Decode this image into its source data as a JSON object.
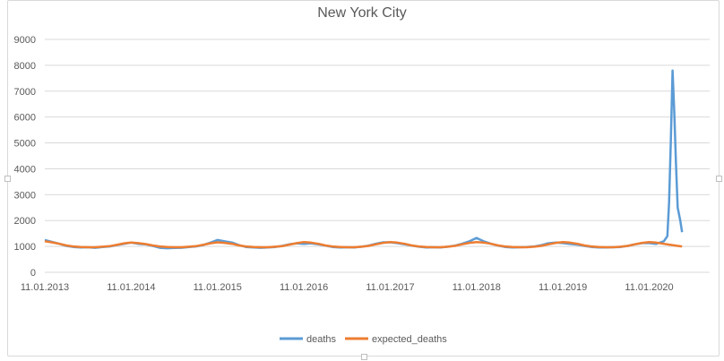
{
  "chart_data": {
    "type": "line",
    "title": "New York City",
    "xlabel": "",
    "ylabel": "",
    "ylim": [
      0,
      9000
    ],
    "yticks": [
      0,
      1000,
      2000,
      3000,
      4000,
      5000,
      6000,
      7000,
      8000,
      9000
    ],
    "x_tick_labels": [
      "11.01.2013",
      "11.01.2014",
      "11.01.2015",
      "11.01.2016",
      "11.01.2017",
      "11.01.2018",
      "11.01.2019",
      "11.01.2020"
    ],
    "x_range_years": [
      2013,
      2020.7
    ],
    "grid": true,
    "legend": "bottom",
    "series": [
      {
        "name": "deaths",
        "color": "#5b9bd5",
        "points": [
          [
            2013.0,
            1250
          ],
          [
            2013.08,
            1180
          ],
          [
            2013.17,
            1100
          ],
          [
            2013.25,
            1020
          ],
          [
            2013.33,
            980
          ],
          [
            2013.42,
            960
          ],
          [
            2013.5,
            970
          ],
          [
            2013.58,
            950
          ],
          [
            2013.67,
            980
          ],
          [
            2013.75,
            1000
          ],
          [
            2013.83,
            1050
          ],
          [
            2013.92,
            1100
          ],
          [
            2014.0,
            1150
          ],
          [
            2014.08,
            1100
          ],
          [
            2014.17,
            1080
          ],
          [
            2014.25,
            1020
          ],
          [
            2014.33,
            950
          ],
          [
            2014.42,
            930
          ],
          [
            2014.5,
            940
          ],
          [
            2014.58,
            950
          ],
          [
            2014.67,
            980
          ],
          [
            2014.75,
            1000
          ],
          [
            2014.83,
            1050
          ],
          [
            2014.92,
            1150
          ],
          [
            2015.0,
            1250
          ],
          [
            2015.08,
            1200
          ],
          [
            2015.17,
            1150
          ],
          [
            2015.25,
            1050
          ],
          [
            2015.33,
            980
          ],
          [
            2015.42,
            960
          ],
          [
            2015.5,
            950
          ],
          [
            2015.58,
            960
          ],
          [
            2015.67,
            980
          ],
          [
            2015.75,
            1020
          ],
          [
            2015.83,
            1080
          ],
          [
            2015.92,
            1120
          ],
          [
            2016.0,
            1100
          ],
          [
            2016.08,
            1120
          ],
          [
            2016.17,
            1080
          ],
          [
            2016.25,
            1030
          ],
          [
            2016.33,
            980
          ],
          [
            2016.42,
            960
          ],
          [
            2016.5,
            970
          ],
          [
            2016.58,
            960
          ],
          [
            2016.67,
            990
          ],
          [
            2016.75,
            1030
          ],
          [
            2016.83,
            1100
          ],
          [
            2016.92,
            1160
          ],
          [
            2017.0,
            1160
          ],
          [
            2017.08,
            1130
          ],
          [
            2017.17,
            1080
          ],
          [
            2017.25,
            1030
          ],
          [
            2017.33,
            990
          ],
          [
            2017.42,
            960
          ],
          [
            2017.5,
            970
          ],
          [
            2017.58,
            960
          ],
          [
            2017.67,
            990
          ],
          [
            2017.75,
            1030
          ],
          [
            2017.83,
            1100
          ],
          [
            2017.92,
            1200
          ],
          [
            2018.0,
            1330
          ],
          [
            2018.08,
            1200
          ],
          [
            2018.17,
            1100
          ],
          [
            2018.25,
            1030
          ],
          [
            2018.33,
            980
          ],
          [
            2018.42,
            960
          ],
          [
            2018.5,
            970
          ],
          [
            2018.58,
            980
          ],
          [
            2018.67,
            1000
          ],
          [
            2018.75,
            1050
          ],
          [
            2018.83,
            1120
          ],
          [
            2018.92,
            1150
          ],
          [
            2019.0,
            1130
          ],
          [
            2019.08,
            1100
          ],
          [
            2019.17,
            1070
          ],
          [
            2019.25,
            1020
          ],
          [
            2019.33,
            980
          ],
          [
            2019.42,
            960
          ],
          [
            2019.5,
            960
          ],
          [
            2019.58,
            970
          ],
          [
            2019.67,
            980
          ],
          [
            2019.75,
            1020
          ],
          [
            2019.83,
            1080
          ],
          [
            2019.92,
            1130
          ],
          [
            2020.0,
            1130
          ],
          [
            2020.08,
            1100
          ],
          [
            2020.17,
            1200
          ],
          [
            2020.21,
            1400
          ],
          [
            2020.23,
            2700
          ],
          [
            2020.25,
            5000
          ],
          [
            2020.27,
            7800
          ],
          [
            2020.29,
            6200
          ],
          [
            2020.31,
            4200
          ],
          [
            2020.33,
            2500
          ],
          [
            2020.36,
            2000
          ],
          [
            2020.38,
            1550
          ]
        ]
      },
      {
        "name": "expected_deaths",
        "color": "#ed7d31",
        "points": [
          [
            2013.0,
            1200
          ],
          [
            2013.08,
            1160
          ],
          [
            2013.17,
            1100
          ],
          [
            2013.25,
            1040
          ],
          [
            2013.33,
            1000
          ],
          [
            2013.42,
            980
          ],
          [
            2013.5,
            970
          ],
          [
            2013.58,
            970
          ],
          [
            2013.67,
            990
          ],
          [
            2013.75,
            1010
          ],
          [
            2013.83,
            1060
          ],
          [
            2013.92,
            1120
          ],
          [
            2014.0,
            1150
          ],
          [
            2014.08,
            1130
          ],
          [
            2014.17,
            1090
          ],
          [
            2014.25,
            1040
          ],
          [
            2014.33,
            1000
          ],
          [
            2014.42,
            980
          ],
          [
            2014.5,
            970
          ],
          [
            2014.58,
            970
          ],
          [
            2014.67,
            990
          ],
          [
            2014.75,
            1010
          ],
          [
            2014.83,
            1060
          ],
          [
            2014.92,
            1120
          ],
          [
            2015.0,
            1160
          ],
          [
            2015.08,
            1140
          ],
          [
            2015.17,
            1100
          ],
          [
            2015.25,
            1040
          ],
          [
            2015.33,
            1000
          ],
          [
            2015.42,
            980
          ],
          [
            2015.5,
            970
          ],
          [
            2015.58,
            970
          ],
          [
            2015.67,
            990
          ],
          [
            2015.75,
            1010
          ],
          [
            2015.83,
            1070
          ],
          [
            2015.92,
            1130
          ],
          [
            2016.0,
            1170
          ],
          [
            2016.08,
            1150
          ],
          [
            2016.17,
            1100
          ],
          [
            2016.25,
            1040
          ],
          [
            2016.33,
            1000
          ],
          [
            2016.42,
            980
          ],
          [
            2016.5,
            970
          ],
          [
            2016.58,
            970
          ],
          [
            2016.67,
            990
          ],
          [
            2016.75,
            1020
          ],
          [
            2016.83,
            1080
          ],
          [
            2016.92,
            1140
          ],
          [
            2017.0,
            1170
          ],
          [
            2017.08,
            1150
          ],
          [
            2017.17,
            1100
          ],
          [
            2017.25,
            1040
          ],
          [
            2017.33,
            1000
          ],
          [
            2017.42,
            980
          ],
          [
            2017.5,
            970
          ],
          [
            2017.58,
            970
          ],
          [
            2017.67,
            990
          ],
          [
            2017.75,
            1020
          ],
          [
            2017.83,
            1080
          ],
          [
            2017.92,
            1140
          ],
          [
            2018.0,
            1170
          ],
          [
            2018.08,
            1150
          ],
          [
            2018.17,
            1100
          ],
          [
            2018.25,
            1040
          ],
          [
            2018.33,
            1000
          ],
          [
            2018.42,
            980
          ],
          [
            2018.5,
            970
          ],
          [
            2018.58,
            970
          ],
          [
            2018.67,
            990
          ],
          [
            2018.75,
            1020
          ],
          [
            2018.83,
            1080
          ],
          [
            2018.92,
            1140
          ],
          [
            2019.0,
            1170
          ],
          [
            2019.08,
            1150
          ],
          [
            2019.17,
            1100
          ],
          [
            2019.25,
            1040
          ],
          [
            2019.33,
            1000
          ],
          [
            2019.42,
            980
          ],
          [
            2019.5,
            970
          ],
          [
            2019.58,
            970
          ],
          [
            2019.67,
            990
          ],
          [
            2019.75,
            1020
          ],
          [
            2019.83,
            1080
          ],
          [
            2019.92,
            1140
          ],
          [
            2020.0,
            1170
          ],
          [
            2020.08,
            1150
          ],
          [
            2020.17,
            1100
          ],
          [
            2020.25,
            1060
          ],
          [
            2020.33,
            1020
          ],
          [
            2020.38,
            1000
          ]
        ]
      }
    ]
  }
}
